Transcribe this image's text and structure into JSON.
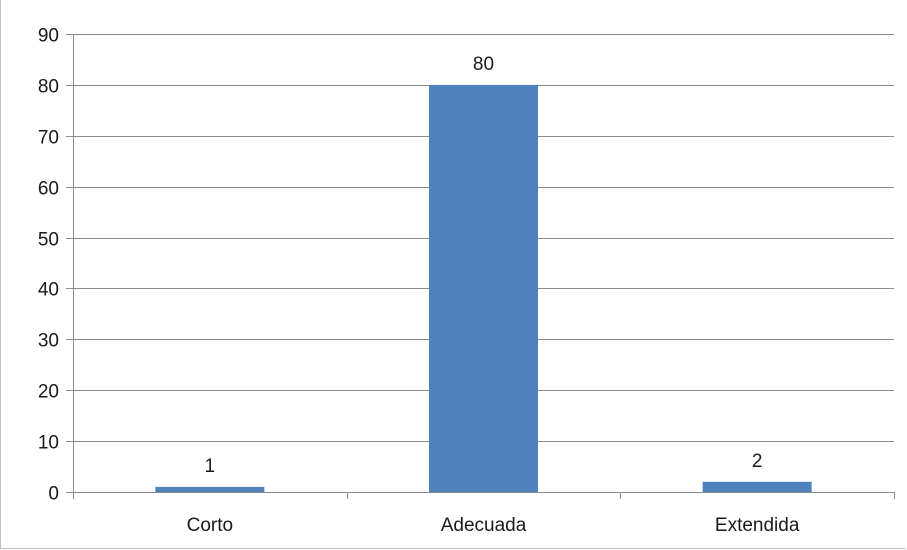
{
  "chart_data": {
    "type": "bar",
    "categories": [
      "Corto",
      "Adecuada",
      "Extendida"
    ],
    "values": [
      1,
      80,
      2
    ],
    "data_labels": [
      "1",
      "80",
      "2"
    ],
    "y_ticks": [
      "0",
      "10",
      "20",
      "30",
      "40",
      "50",
      "60",
      "70",
      "80",
      "90"
    ],
    "ylim": [
      0,
      90
    ],
    "grid": true,
    "legend": "none",
    "bar_color": "#4F81BD",
    "grid_color": "#8c8c8c",
    "axis_color": "#8c8c8c"
  }
}
